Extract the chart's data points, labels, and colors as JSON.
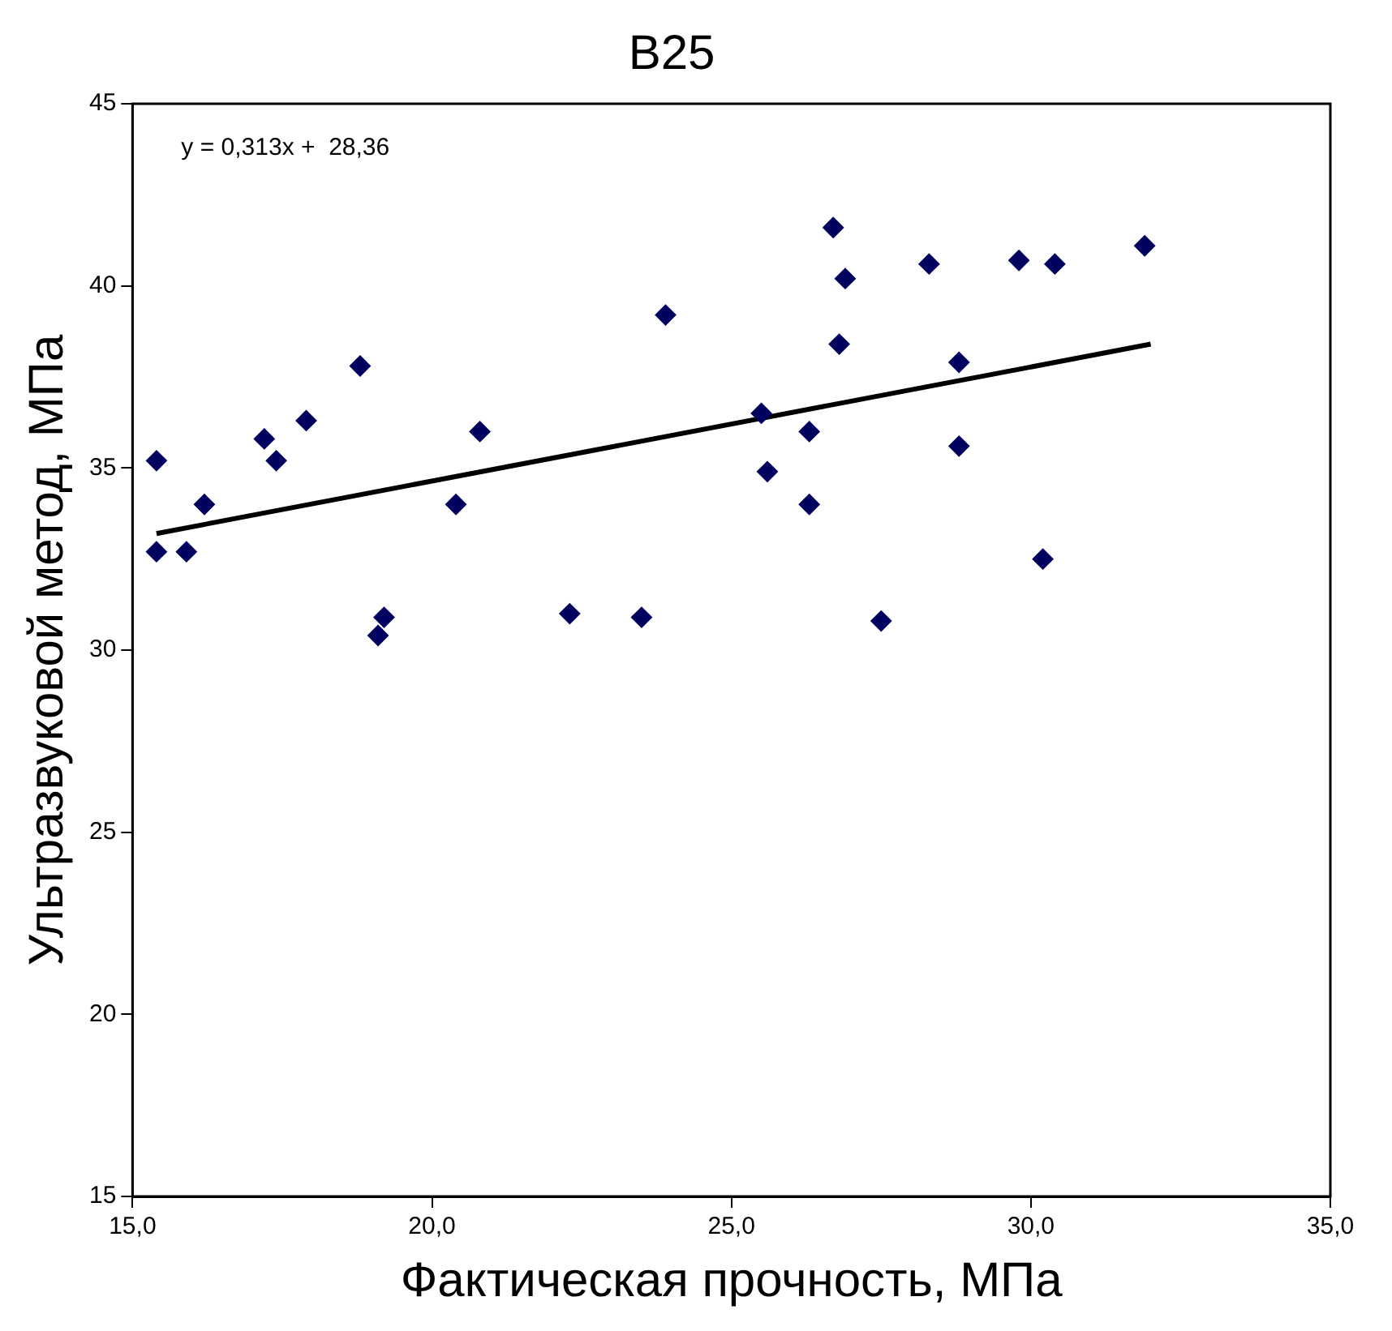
{
  "chart_data": {
    "type": "scatter",
    "title": "B25",
    "xlabel": "Фактическая прочность, МПа",
    "ylabel": "Ультразвуковой метод, МПа",
    "annotations": [
      "y = 0,313x +  28,36"
    ],
    "xlim": [
      15,
      35
    ],
    "xticks": [
      {
        "value": 15,
        "label": "15,0"
      },
      {
        "value": 20,
        "label": "20,0"
      },
      {
        "value": 25,
        "label": "25,0"
      },
      {
        "value": 30,
        "label": "30,0"
      },
      {
        "value": 35,
        "label": "35,0"
      }
    ],
    "ylim": [
      15,
      45
    ],
    "yticks": [
      15,
      20,
      25,
      30,
      35,
      40,
      45
    ],
    "grid": false,
    "legend": false,
    "marker": "diamond",
    "series": [
      {
        "type": "scatter",
        "color": "#00005e",
        "x": [
          15.4,
          15.4,
          15.9,
          16.2,
          17.2,
          17.4,
          17.9,
          18.8,
          19.1,
          19.2,
          20.4,
          20.8,
          22.3,
          23.5,
          23.9,
          26.7,
          26.9,
          26.8,
          25.5,
          26.3,
          25.6,
          26.3,
          27.5,
          28.3,
          28.8,
          28.8,
          29.8,
          30.4,
          30.2,
          31.9
        ],
        "values": [
          32.7,
          35.2,
          32.7,
          34.0,
          35.8,
          35.2,
          36.3,
          37.8,
          30.4,
          30.9,
          34.0,
          36.0,
          31.0,
          30.9,
          39.2,
          41.6,
          40.2,
          38.4,
          36.5,
          36.0,
          34.9,
          34.0,
          30.8,
          40.6,
          37.9,
          35.6,
          40.7,
          40.6,
          32.5,
          41.1
        ]
      },
      {
        "type": "line",
        "color": "#000000",
        "line_style": "solid",
        "marker": "none",
        "x": [
          15.4,
          32.0
        ],
        "values": [
          33.2,
          38.4
        ]
      }
    ]
  }
}
